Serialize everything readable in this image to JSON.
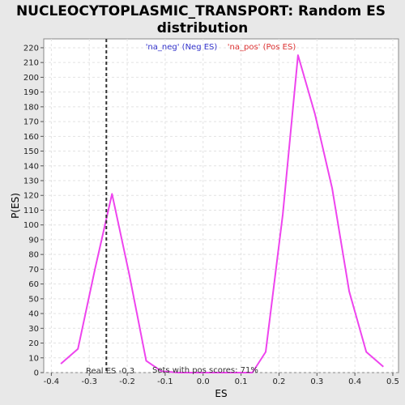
{
  "chart_data": {
    "type": "line",
    "title_line1": "NUCLEOCYTOPLASMIC_TRANSPORT: Random ES",
    "title_line2": "distribution",
    "xlabel": "ES",
    "ylabel": "P(ES)",
    "xlim": [
      -0.42,
      0.515
    ],
    "ylim": [
      0,
      226
    ],
    "x_ticks": [
      -0.4,
      -0.3,
      -0.2,
      -0.1,
      0.0,
      0.1,
      0.2,
      0.3,
      0.4,
      0.5
    ],
    "x_tick_labels": [
      "-0.4",
      "-0.3",
      "-0.2",
      "-0.1",
      "0.0",
      "0.1",
      "0.2",
      "0.3",
      "0.4",
      "0.5"
    ],
    "y_ticks": [
      0,
      10,
      20,
      30,
      40,
      50,
      60,
      70,
      80,
      90,
      100,
      110,
      120,
      130,
      140,
      150,
      160,
      170,
      180,
      190,
      200,
      210,
      220
    ],
    "grid": true,
    "legend": [
      {
        "label": "'na_neg' (Neg ES)",
        "color": "#3333cc"
      },
      {
        "label": "'na_pos' (Pos ES)",
        "color": "#dd3333"
      }
    ],
    "series": [
      {
        "color": "#ee44ee",
        "x": [
          -0.375,
          -0.33,
          -0.285,
          -0.24,
          -0.195,
          -0.15,
          -0.11,
          -0.065,
          0.0,
          0.05,
          0.08,
          0.13,
          0.165,
          0.21,
          0.25,
          0.295,
          0.34,
          0.385,
          0.43,
          0.475
        ],
        "y": [
          6,
          16,
          70,
          121,
          67,
          8,
          1,
          0,
          0,
          0,
          0,
          0,
          14,
          107,
          215,
          175,
          125,
          55,
          14,
          4
        ]
      }
    ],
    "real_es": {
      "x": -0.255,
      "label": "Real ES -0.3"
    },
    "annotation": "Sets with pos scores: 71%"
  }
}
